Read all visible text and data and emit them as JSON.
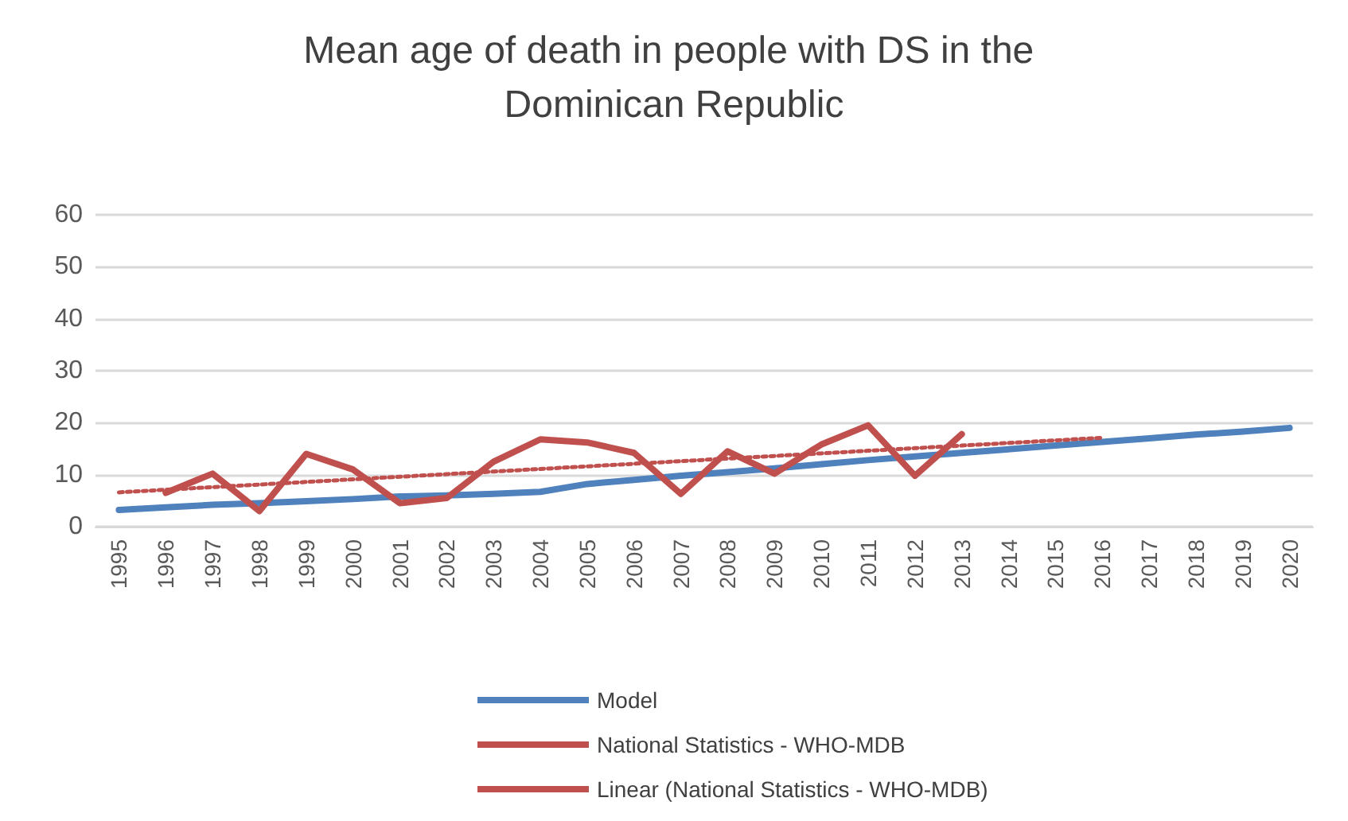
{
  "chart_data": {
    "type": "line",
    "title": "Mean age of death in people with DS in the Dominican Republic",
    "categories": [
      "1995",
      "1996",
      "1997",
      "1998",
      "1999",
      "2000",
      "2001",
      "2002",
      "2003",
      "2004",
      "2005",
      "2006",
      "2007",
      "2008",
      "2009",
      "2010",
      "2011",
      "2012",
      "2013",
      "2014",
      "2015",
      "2016",
      "2017",
      "2018",
      "2019",
      "2020"
    ],
    "series": [
      {
        "name": "Model",
        "color": "#4f81bd",
        "line_style": "solid",
        "values": [
          3.2,
          3.7,
          4.2,
          4.5,
          4.9,
          5.3,
          5.8,
          6.0,
          6.3,
          6.7,
          8.2,
          9.0,
          9.8,
          10.5,
          11.2,
          12.0,
          12.8,
          13.5,
          14.2,
          14.9,
          15.6,
          16.3,
          17.0,
          17.7,
          18.3,
          19.0
        ]
      },
      {
        "name": "National Statistics - WHO-MDB",
        "color": "#c0504d",
        "line_style": "solid",
        "values": [
          null,
          6.5,
          10.2,
          3.0,
          14.0,
          11.0,
          4.5,
          5.5,
          12.5,
          16.8,
          16.2,
          14.2,
          6.3,
          14.5,
          10.2,
          15.8,
          19.5,
          9.8,
          17.8,
          null,
          null,
          null,
          null,
          null,
          null,
          null
        ]
      },
      {
        "name": "Linear (National Statistics - WHO-MDB)",
        "color": "#c0504d",
        "line_style": "dotted",
        "values": [
          6.6,
          7.1,
          7.6,
          8.1,
          8.6,
          9.1,
          9.6,
          10.1,
          10.6,
          11.1,
          11.6,
          12.1,
          12.6,
          13.1,
          13.6,
          14.1,
          14.6,
          15.1,
          15.6,
          16.1,
          16.6,
          17.1,
          null,
          null,
          null,
          null
        ]
      }
    ],
    "ylim": [
      0,
      60
    ],
    "yticks": [
      0,
      10,
      20,
      30,
      40,
      50,
      60
    ],
    "grid": "y",
    "legend": "bottom",
    "marker": "none"
  }
}
